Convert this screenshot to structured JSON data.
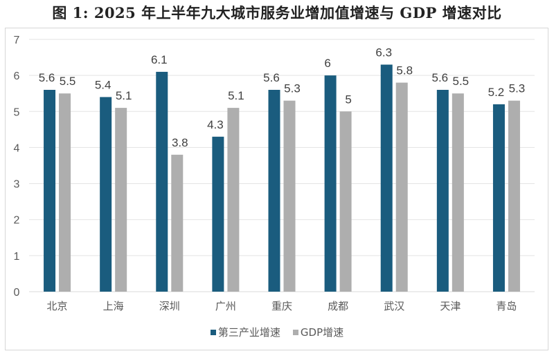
{
  "chart_data": {
    "type": "bar",
    "title": "图 1: 2025 年上半年九大城市服务业增加值增速与 GDP 增速对比",
    "xlabel": "",
    "ylabel": "",
    "ylim": [
      0,
      7
    ],
    "yticks": [
      "0",
      "1",
      "2",
      "3",
      "4",
      "5",
      "6",
      "7"
    ],
    "grid": true,
    "legend_position": "bottom",
    "categories": [
      "北京",
      "上海",
      "深圳",
      "广州",
      "重庆",
      "成都",
      "武汉",
      "天津",
      "青岛"
    ],
    "series": [
      {
        "name": "第三产业增速",
        "color": "#1a5c7e",
        "values": [
          5.6,
          5.4,
          6.1,
          4.3,
          5.6,
          6,
          6.3,
          5.6,
          5.2
        ],
        "labels": [
          "5.6",
          "5.4",
          "6.1",
          "4.3",
          "5.6",
          "6",
          "6.3",
          "5.6",
          "5.2"
        ]
      },
      {
        "name": "GDP增速",
        "color": "#aeaeae",
        "values": [
          5.5,
          5.1,
          3.8,
          5.1,
          5.3,
          5,
          5.8,
          5.5,
          5.3
        ],
        "labels": [
          "5.5",
          "5.1",
          "3.8",
          "5.1",
          "5.3",
          "5",
          "5.8",
          "5.5",
          "5.3"
        ]
      }
    ]
  },
  "colors": {
    "gridline": "#e3e3e3",
    "axis": "#d9d9d9"
  }
}
